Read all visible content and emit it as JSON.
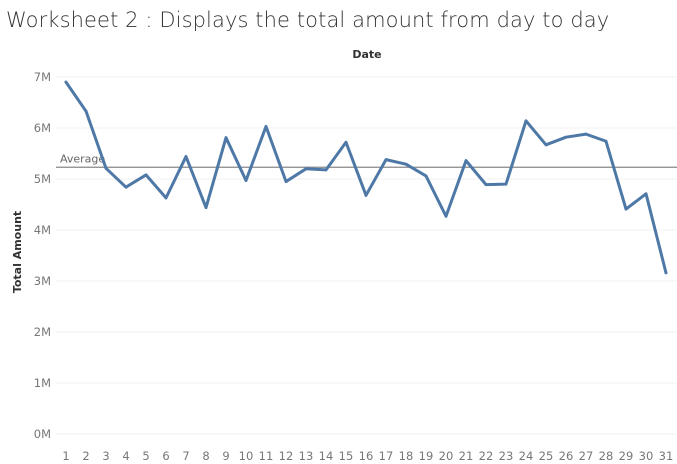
{
  "title": "Worksheet 2 : Displays the total amount from day to day",
  "chart_data": {
    "type": "line",
    "title": "Worksheet 2 : Displays the total amount from day to day",
    "xlabel": "Date",
    "ylabel": "Total Amount",
    "x": [
      1,
      2,
      3,
      4,
      5,
      6,
      7,
      8,
      9,
      10,
      11,
      12,
      13,
      14,
      15,
      16,
      17,
      18,
      19,
      20,
      21,
      22,
      23,
      24,
      25,
      26,
      27,
      28,
      29,
      30,
      31
    ],
    "x_tick_labels": [
      "1",
      "2",
      "3",
      "4",
      "5",
      "6",
      "7",
      "8",
      "9",
      "10",
      "11",
      "12",
      "13",
      "14",
      "15",
      "16",
      "17",
      "18",
      "19",
      "20",
      "21",
      "22",
      "23",
      "24",
      "25",
      "26",
      "27",
      "28",
      "29",
      "30",
      "31"
    ],
    "series": [
      {
        "values": [
          6.9,
          6.33,
          5.21,
          4.84,
          5.08,
          4.63,
          5.44,
          4.44,
          5.81,
          4.97,
          6.03,
          4.95,
          5.2,
          5.18,
          5.72,
          4.68,
          5.38,
          5.29,
          5.06,
          4.27,
          5.36,
          4.89,
          4.9,
          6.14,
          5.67,
          5.82,
          5.88,
          5.74,
          4.41,
          4.71,
          3.16
        ],
        "color": "#4e79a7"
      }
    ],
    "unit_suffix": "M",
    "ylim": [
      0,
      7.2
    ],
    "y_ticks": [
      0,
      1,
      2,
      3,
      4,
      5,
      6,
      7
    ],
    "y_tick_labels": [
      "0M",
      "1M",
      "2M",
      "3M",
      "4M",
      "5M",
      "6M",
      "7M"
    ],
    "reference_line": {
      "label": "Average",
      "value": 5.23,
      "color": "#888888"
    },
    "grid": true,
    "legend": "none"
  }
}
